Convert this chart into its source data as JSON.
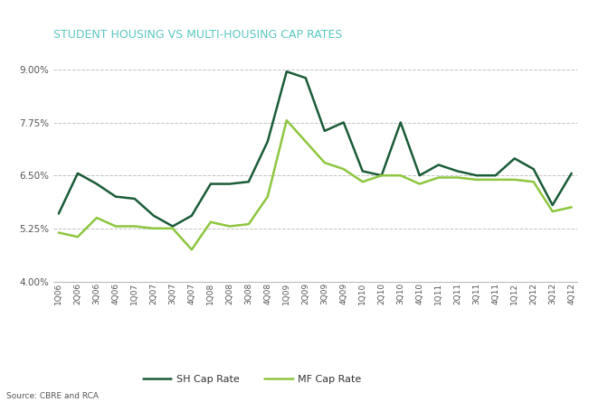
{
  "title": "STUDENT HOUSING VS MULTI-HOUSING CAP RATES",
  "source": "Source: CBRE and RCA",
  "x_labels": [
    "1Q06",
    "2Q06",
    "3Q06",
    "4Q06",
    "1Q07",
    "2Q07",
    "3Q07",
    "4Q07",
    "1Q08",
    "2Q08",
    "3Q08",
    "4Q08",
    "1Q09",
    "2Q09",
    "3Q09",
    "4Q09",
    "1Q10",
    "2Q10",
    "3Q10",
    "4Q10",
    "1Q11",
    "2Q11",
    "3Q11",
    "4Q11",
    "1Q12",
    "2Q12",
    "3Q12",
    "4Q12"
  ],
  "sh_cap_rate": [
    5.6,
    6.55,
    6.3,
    6.0,
    5.95,
    5.55,
    5.3,
    5.55,
    6.3,
    6.3,
    6.35,
    7.3,
    8.95,
    8.8,
    7.55,
    7.75,
    6.6,
    6.5,
    7.75,
    6.5,
    6.75,
    6.6,
    6.5,
    6.5,
    6.9,
    6.65,
    5.8,
    6.55
  ],
  "mf_cap_rate": [
    5.15,
    5.05,
    5.5,
    5.3,
    5.3,
    5.25,
    5.25,
    4.75,
    5.4,
    5.3,
    5.35,
    6.0,
    7.8,
    7.3,
    6.8,
    6.65,
    6.35,
    6.5,
    6.5,
    6.3,
    6.45,
    6.45,
    6.4,
    6.4,
    6.4,
    6.35,
    5.65,
    5.75
  ],
  "sh_color": "#1a5c38",
  "mf_color": "#8dc63f",
  "title_color": "#5bc8c0",
  "ylim": [
    4.0,
    9.5
  ],
  "yticks": [
    4.0,
    5.25,
    6.5,
    7.75,
    9.0
  ],
  "background_color": "#ffffff",
  "grid_color": "#bbbbbb",
  "legend_sh": "SH Cap Rate",
  "legend_mf": "MF Cap Rate"
}
